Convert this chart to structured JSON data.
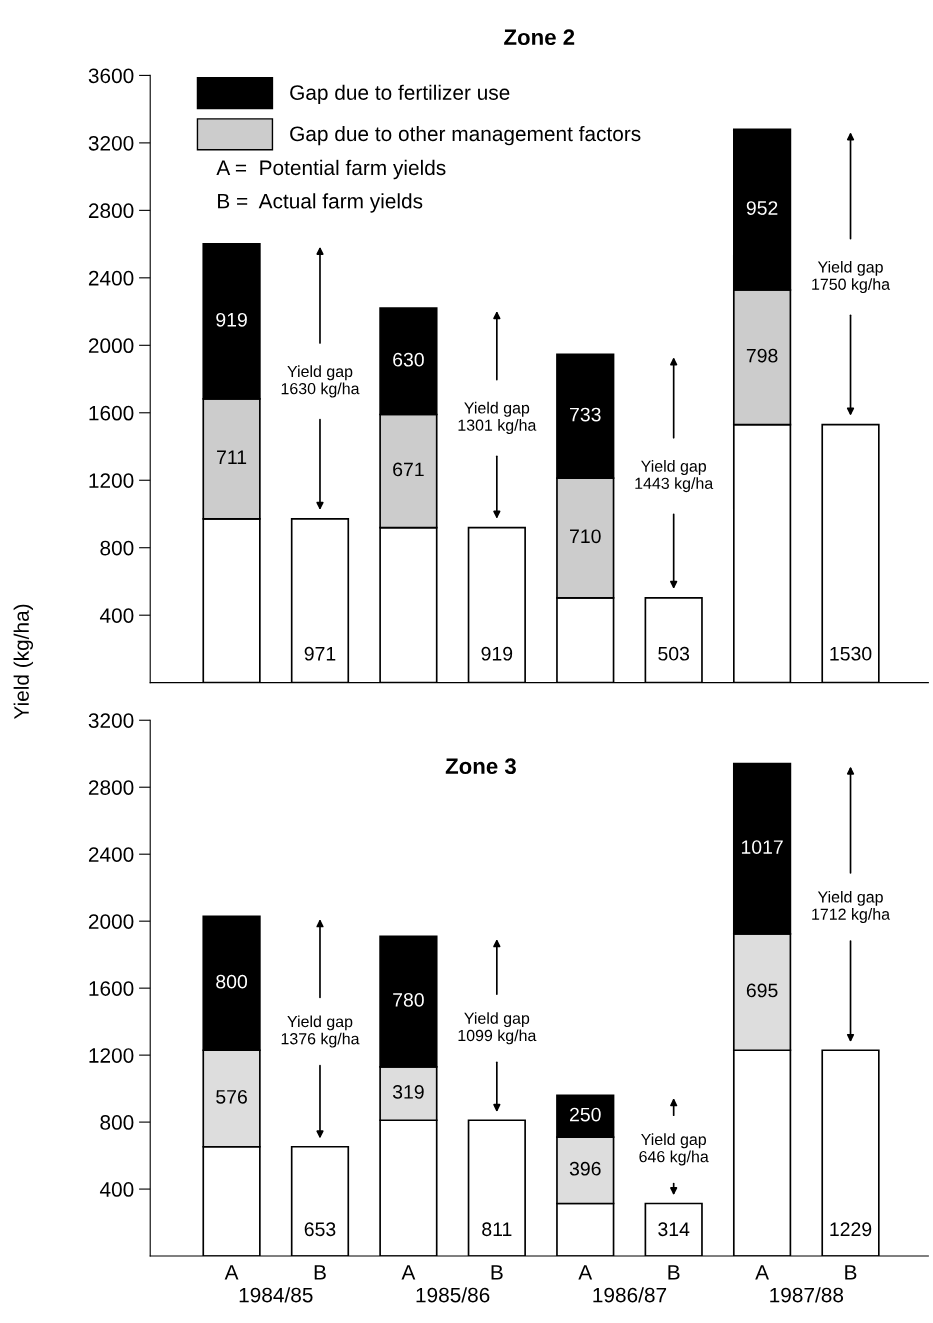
{
  "chart_data": [
    {
      "type": "bar",
      "stacked": true,
      "title": "Zone 2",
      "ylabel": "Yield (kg/ha)",
      "categories": [
        null,
        null,
        null,
        null,
        null,
        null,
        null,
        null
      ],
      "ylim": [
        0,
        3600
      ],
      "yticks": [
        400,
        800,
        1200,
        1600,
        2000,
        2400,
        2800,
        3200,
        3600
      ],
      "tick_labels": "y",
      "grid": false,
      "legend": "top left",
      "series": [
        {
          "color": "#ffffff",
          "values": [
            971,
            971,
            919,
            919,
            503,
            503,
            1530,
            1530
          ],
          "value_labels": [
            null,
            "971",
            null,
            "919",
            null,
            "503",
            null,
            "1530"
          ]
        },
        {
          "name": "Gap due to other management factors",
          "color": "#cccccc",
          "values": [
            711,
            null,
            671,
            null,
            710,
            null,
            798,
            null
          ],
          "value_labels": [
            "711",
            null,
            "671",
            null,
            "710",
            null,
            "798",
            null
          ]
        },
        {
          "name": "Gap due to fertilizer use",
          "color": "#000000",
          "values": [
            919,
            null,
            630,
            null,
            733,
            null,
            952,
            null
          ],
          "value_labels": [
            "919",
            null,
            "630",
            null,
            "733",
            null,
            "952",
            null
          ]
        }
      ],
      "annotations": [
        "Yield gap\n1630 kg/ha",
        "Yield gap\n1301 kg/ha",
        "Yield gap\n1443 kg/ha",
        "Yield gap\n1750 kg/ha",
        "A =  Potential farm yields",
        "B =  Actual farm yields"
      ]
    },
    {
      "type": "bar",
      "stacked": true,
      "title": "Zone 3",
      "categories": [
        "A",
        "B",
        "A",
        "B",
        "A",
        "B",
        "A",
        "B"
      ],
      "ylim": [
        0,
        3200
      ],
      "yticks": [
        400,
        800,
        1200,
        1600,
        2000,
        2400,
        2800,
        3200
      ],
      "grid": false,
      "series": [
        {
          "color": "#ffffff",
          "values": [
            653,
            653,
            811,
            811,
            314,
            314,
            1229,
            1229
          ],
          "value_labels": [
            null,
            "653",
            null,
            "811",
            null,
            "314",
            null,
            "1229"
          ]
        },
        {
          "color": "#dddddd",
          "values": [
            576,
            null,
            319,
            null,
            396,
            null,
            695,
            null
          ],
          "value_labels": [
            "576",
            null,
            "319",
            null,
            "396",
            null,
            "695",
            null
          ]
        },
        {
          "color": "#000000",
          "values": [
            800,
            null,
            780,
            null,
            250,
            null,
            1017,
            null
          ],
          "value_labels": [
            "800",
            null,
            "780",
            null,
            "250",
            null,
            "1017",
            null
          ]
        }
      ],
      "annotations": [
        "Yield gap\n1376 kg/ha",
        "Yield gap\n1099 kg/ha",
        "Yield gap\n646 kg/ha",
        "Yield gap\n1712 kg/ha",
        "1984/85",
        "1985/86",
        "1986/87",
        "1987/88"
      ]
    }
  ]
}
